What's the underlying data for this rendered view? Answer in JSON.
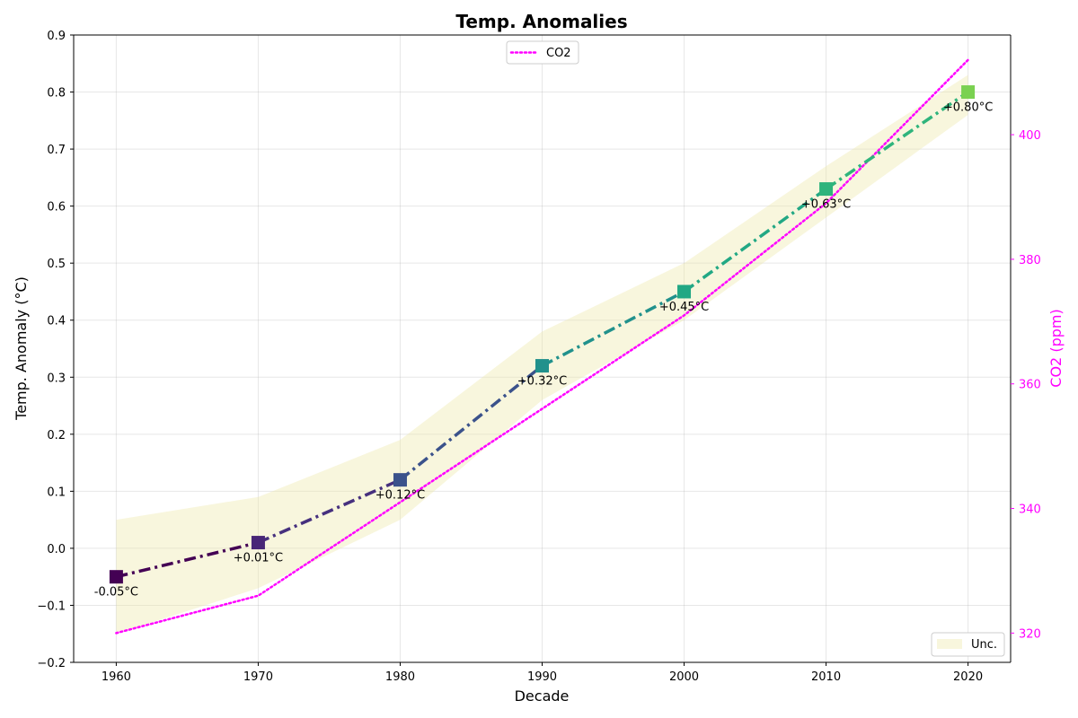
{
  "chart_data": {
    "type": "line",
    "title": "Temp. Anomalies",
    "xlabel": "Decade",
    "ylabel": "Temp. Anomaly (°C)",
    "y2label": "CO2 (ppm)",
    "x": [
      1960,
      1970,
      1980,
      1990,
      2000,
      2010,
      2020
    ],
    "xlim": [
      1957,
      2023
    ],
    "ylim": [
      -0.2,
      0.9
    ],
    "y2lim": [
      315.3,
      416
    ],
    "x_ticks": [
      "1960",
      "1970",
      "1980",
      "1990",
      "2000",
      "2010",
      "2020"
    ],
    "y_ticks": [
      "−0.2",
      "−0.1",
      "0.0",
      "0.1",
      "0.2",
      "0.3",
      "0.4",
      "0.5",
      "0.6",
      "0.7",
      "0.8",
      "0.9"
    ],
    "y2_ticks": [
      "320",
      "340",
      "360",
      "380",
      "400"
    ],
    "grid": true,
    "series": [
      {
        "values": [
          -0.05,
          0.01,
          0.12,
          0.32,
          0.45,
          0.63,
          0.8
        ],
        "labels": [
          "-0.05°C",
          "+0.01°C",
          "+0.12°C",
          "+0.32°C",
          "+0.45°C",
          "+0.63°C",
          "+0.80°C"
        ],
        "axis": "left",
        "style": "dashdot",
        "marker": "square",
        "segment_colors": [
          "#440154",
          "#46307e",
          "#3b528b",
          "#21918c",
          "#22a884",
          "#2fb47c",
          "#7ad151"
        ],
        "marker_colors": [
          "#440154",
          "#482777",
          "#3b528b",
          "#21918c",
          "#22a884",
          "#2fb47c",
          "#7ad151"
        ]
      },
      {
        "name": "CO2",
        "values": [
          320,
          326,
          341,
          356,
          371,
          389,
          412
        ],
        "axis": "right",
        "style": "dotted",
        "color": "#ff00ff"
      }
    ],
    "band": {
      "name": "Unc.",
      "lower": [
        -0.15,
        -0.07,
        0.05,
        0.26,
        0.4,
        0.58,
        0.76
      ],
      "upper": [
        0.05,
        0.09,
        0.19,
        0.38,
        0.5,
        0.67,
        0.83
      ],
      "color": "#eee8aa"
    },
    "legends": {
      "top": [
        "CO2"
      ],
      "bottom_right": [
        "Unc."
      ]
    }
  }
}
